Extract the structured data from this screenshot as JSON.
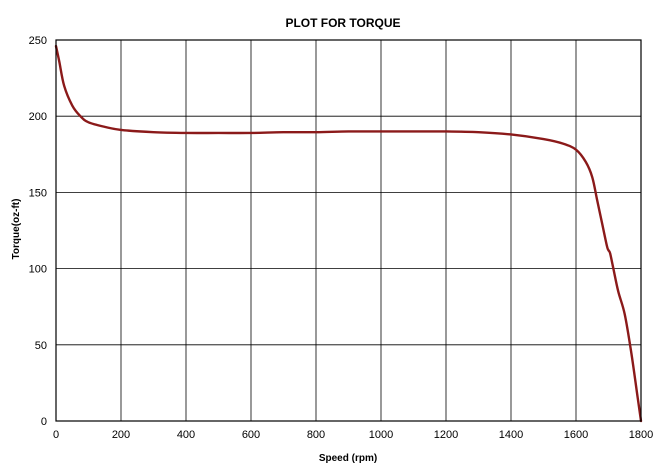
{
  "chart_data": {
    "type": "line",
    "title": "PLOT FOR TORQUE",
    "xlabel": "Speed (rpm)",
    "ylabel": "Torque(oz-ft)",
    "xlim": [
      0,
      1800
    ],
    "ylim": [
      0,
      250
    ],
    "xticks": [
      0,
      200,
      400,
      600,
      800,
      1000,
      1200,
      1400,
      1600,
      1800
    ],
    "yticks": [
      0,
      50,
      100,
      150,
      200,
      250
    ],
    "grid": true,
    "colors": {
      "series": "#8b1a1a",
      "grid": "#000000",
      "frame": "#000000",
      "background": "#ffffff"
    },
    "series": [
      {
        "x": [
          0,
          10,
          25,
          50,
          75,
          100,
          150,
          200,
          300,
          400,
          500,
          600,
          700,
          800,
          900,
          1000,
          1100,
          1200,
          1300,
          1400,
          1500,
          1560,
          1600,
          1630,
          1650,
          1665,
          1680,
          1695,
          1700,
          1705,
          1715,
          1730,
          1750,
          1770,
          1790,
          1800
        ],
        "y": [
          246,
          236,
          220,
          207,
          200,
          196,
          193,
          191,
          189.5,
          189,
          189,
          189,
          189.5,
          189.5,
          190,
          190,
          190,
          190,
          189.5,
          188,
          185,
          182,
          178,
          170,
          160,
          145,
          130,
          115,
          112,
          110,
          100,
          85,
          70,
          45,
          15,
          0
        ]
      }
    ]
  }
}
